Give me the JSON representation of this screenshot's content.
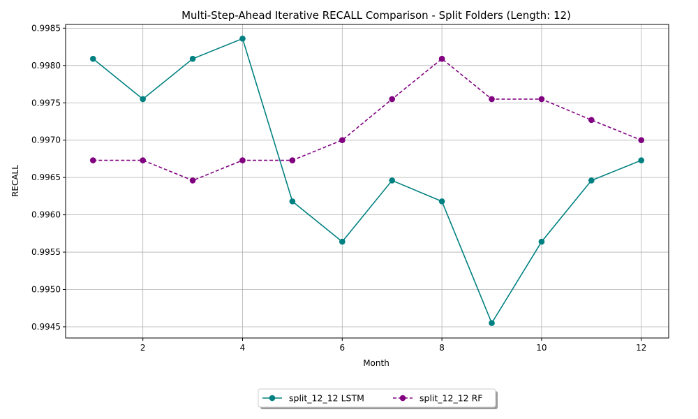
{
  "chart_data": {
    "type": "line",
    "title": "Multi-Step-Ahead Iterative RECALL Comparison - Split Folders (Length: 12)",
    "xlabel": "Month",
    "ylabel": "RECALL",
    "x": [
      1,
      2,
      3,
      4,
      5,
      6,
      7,
      8,
      9,
      10,
      11,
      12
    ],
    "xlim": [
      0.45,
      12.55
    ],
    "ylim": [
      0.99435,
      0.99855
    ],
    "xticks": [
      2,
      4,
      6,
      8,
      10,
      12
    ],
    "xtick_labels": [
      "2",
      "4",
      "6",
      "8",
      "10",
      "12"
    ],
    "yticks": [
      0.9945,
      0.995,
      0.9955,
      0.996,
      0.9965,
      0.997,
      0.9975,
      0.998,
      0.9985
    ],
    "ytick_labels": [
      "0.9945",
      "0.9950",
      "0.9955",
      "0.9960",
      "0.9965",
      "0.9970",
      "0.9975",
      "0.9980",
      "0.9985"
    ],
    "grid": true,
    "legend_position": "bottom-center",
    "series": [
      {
        "name": "split_12_12 LSTM",
        "color": "#008080",
        "line_style": "solid",
        "marker": "circle",
        "values": [
          0.99809,
          0.99755,
          0.99809,
          0.99836,
          0.99618,
          0.99564,
          0.99646,
          0.99618,
          0.99455,
          0.99564,
          0.99646,
          0.99673
        ]
      },
      {
        "name": "split_12_12 RF",
        "color": "#800080",
        "line_style": "dashed",
        "marker": "circle",
        "values": [
          0.99673,
          0.99673,
          0.99646,
          0.99673,
          0.99673,
          0.997,
          0.99755,
          0.99809,
          0.99755,
          0.99755,
          0.99727,
          0.997
        ]
      }
    ]
  }
}
